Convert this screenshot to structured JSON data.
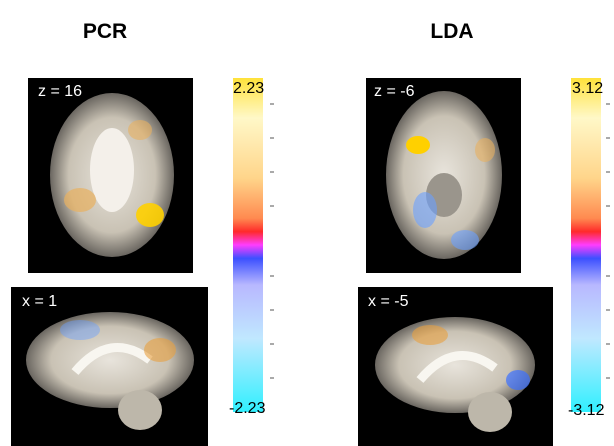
{
  "panels": [
    {
      "title": "PCR",
      "axial_label": "z = 16",
      "sagittal_label": "x = 1",
      "colorbar": {
        "max": 2.23,
        "min": -2.23
      }
    },
    {
      "title": "LDA",
      "axial_label": "z = -6",
      "sagittal_label": "x = -5",
      "colorbar": {
        "max": 3.12,
        "min": -3.12
      }
    }
  ]
}
